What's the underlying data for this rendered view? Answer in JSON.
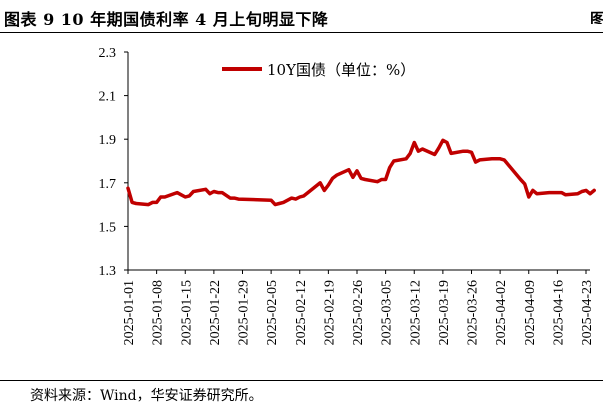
{
  "figure": {
    "title": "图表 9 10 年期国债利率 4 月上旬明显下降",
    "corner_mark": "图",
    "source": "资料来源：Wind，华安证券研究所。"
  },
  "chart_data": {
    "type": "line",
    "title": "",
    "xlabel": "",
    "ylabel": "",
    "ylim": [
      1.3,
      2.3
    ],
    "yticks": [
      "1.3",
      "1.5",
      "1.7",
      "1.9",
      "2.1",
      "2.3"
    ],
    "grid": false,
    "legend": "top-center",
    "xticks": [
      "2025-01-01",
      "2025-01-08",
      "2025-01-15",
      "2025-01-22",
      "2025-01-29",
      "2025-02-05",
      "2025-02-12",
      "2025-02-19",
      "2025-02-26",
      "2025-03-05",
      "2025-03-12",
      "2025-03-19",
      "2025-03-26",
      "2025-04-02",
      "2025-04-09",
      "2025-04-16",
      "2025-04-23"
    ],
    "series": [
      {
        "name": "10Y国债（单位：%）",
        "color": "#C00000",
        "x": [
          "2025-01-01",
          "2025-01-02",
          "2025-01-03",
          "2025-01-06",
          "2025-01-07",
          "2025-01-08",
          "2025-01-09",
          "2025-01-10",
          "2025-01-13",
          "2025-01-14",
          "2025-01-15",
          "2025-01-16",
          "2025-01-17",
          "2025-01-20",
          "2025-01-21",
          "2025-01-22",
          "2025-01-23",
          "2025-01-24",
          "2025-01-26",
          "2025-01-27",
          "2025-01-28",
          "2025-02-05",
          "2025-02-06",
          "2025-02-07",
          "2025-02-08",
          "2025-02-10",
          "2025-02-11",
          "2025-02-12",
          "2025-02-13",
          "2025-02-14",
          "2025-02-17",
          "2025-02-18",
          "2025-02-19",
          "2025-02-20",
          "2025-02-21",
          "2025-02-24",
          "2025-02-25",
          "2025-02-26",
          "2025-02-27",
          "2025-02-28",
          "2025-03-03",
          "2025-03-04",
          "2025-03-05",
          "2025-03-06",
          "2025-03-07",
          "2025-03-10",
          "2025-03-11",
          "2025-03-12",
          "2025-03-13",
          "2025-03-14",
          "2025-03-17",
          "2025-03-18",
          "2025-03-19",
          "2025-03-20",
          "2025-03-21",
          "2025-03-24",
          "2025-03-25",
          "2025-03-26",
          "2025-03-27",
          "2025-03-28",
          "2025-03-31",
          "2025-04-01",
          "2025-04-02",
          "2025-04-03",
          "2025-04-07",
          "2025-04-08",
          "2025-04-09",
          "2025-04-10",
          "2025-04-11",
          "2025-04-14",
          "2025-04-15",
          "2025-04-16",
          "2025-04-17",
          "2025-04-18",
          "2025-04-21",
          "2025-04-22",
          "2025-04-23",
          "2025-04-24",
          "2025-04-25"
        ],
        "values": [
          1.675,
          1.61,
          1.605,
          1.6,
          1.61,
          1.61,
          1.635,
          1.635,
          1.655,
          1.645,
          1.635,
          1.64,
          1.66,
          1.67,
          1.65,
          1.66,
          1.655,
          1.655,
          1.63,
          1.63,
          1.625,
          1.62,
          1.6,
          1.605,
          1.61,
          1.63,
          1.625,
          1.635,
          1.64,
          1.655,
          1.7,
          1.665,
          1.69,
          1.72,
          1.735,
          1.76,
          1.725,
          1.755,
          1.72,
          1.715,
          1.705,
          1.715,
          1.715,
          1.77,
          1.8,
          1.81,
          1.835,
          1.885,
          1.845,
          1.855,
          1.83,
          1.86,
          1.895,
          1.885,
          1.835,
          1.845,
          1.845,
          1.84,
          1.795,
          1.805,
          1.81,
          1.81,
          1.81,
          1.805,
          1.715,
          1.695,
          1.635,
          1.665,
          1.65,
          1.655,
          1.655,
          1.655,
          1.655,
          1.645,
          1.65,
          1.66,
          1.665,
          1.65,
          1.665
        ]
      }
    ]
  }
}
